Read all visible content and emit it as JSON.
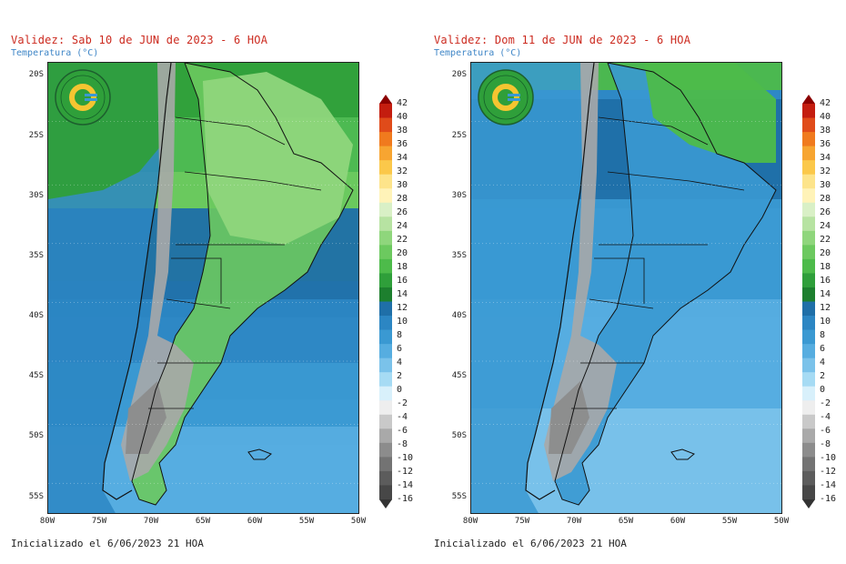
{
  "panels": [
    {
      "title": "Validez: Sab 10 de JUN de 2023 - 6 HOA",
      "subtitle": "Temperatura (°C)",
      "footer": "Inicializado el 6/06/2023 21 HOA",
      "variant": "warm"
    },
    {
      "title": "Validez: Dom 11 de JUN de 2023 - 6 HOA",
      "subtitle": "Temperatura (°C)",
      "footer": "Inicializado el 6/06/2023 21 HOA",
      "variant": "cool"
    }
  ],
  "lat_labels": [
    "20S",
    "25S",
    "30S",
    "35S",
    "40S",
    "45S",
    "50S",
    "55S"
  ],
  "lon_labels": [
    "80W",
    "75W",
    "70W",
    "65W",
    "60W",
    "55W",
    "50W"
  ],
  "legend": {
    "values": [
      "42",
      "40",
      "38",
      "36",
      "34",
      "32",
      "30",
      "28",
      "26",
      "24",
      "22",
      "20",
      "18",
      "16",
      "14",
      "12",
      "10",
      "8",
      "6",
      "4",
      "2",
      "0",
      "-2",
      "-4",
      "-6",
      "-8",
      "-10",
      "-12",
      "-14",
      "-16"
    ],
    "colors": [
      "#8b0000",
      "#c41d0f",
      "#e04b1a",
      "#f07a1e",
      "#f7a531",
      "#fbc84a",
      "#fde48a",
      "#fff3b8",
      "#d9f0c6",
      "#b7e3a2",
      "#8fd67c",
      "#6cc95f",
      "#4dbb4a",
      "#2f9f3a",
      "#1d7f2e",
      "#1f6fa8",
      "#2c86c3",
      "#3a99d2",
      "#56ade0",
      "#7ac2ea",
      "#a6dbf4",
      "#d8f0fb",
      "#eeeeee",
      "#c9c9c9",
      "#a9a9a9",
      "#8c8c8c",
      "#737373",
      "#5c5c5c",
      "#474747",
      "#333333"
    ]
  },
  "logo_text": "SERVICIO METEOROLÓGICO NACIONAL ARGENTINA"
}
